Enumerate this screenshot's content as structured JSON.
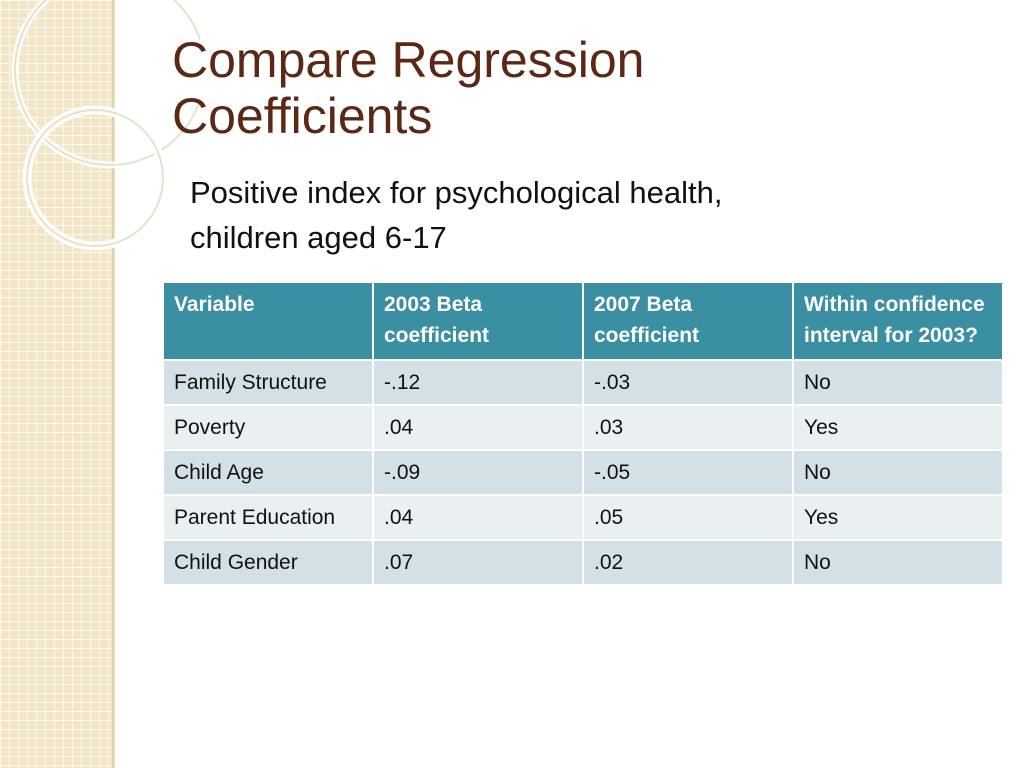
{
  "slide": {
    "title_line1": "Compare Regression",
    "title_line2": "Coefficients",
    "subtitle_line1": "Positive index for psychological health,",
    "subtitle_line2": "children aged 6-17"
  },
  "colors": {
    "title": "#5a2814",
    "header_bg": "#3a8fa3",
    "row_bg": "#d3e1e6",
    "row_alt_bg": "#eaf0f2",
    "side_strip": "#f3e6c6"
  },
  "table": {
    "headers": [
      "Variable",
      "2003 Beta coefficient",
      "2007 Beta coefficient",
      "Within confidence interval for 2003?"
    ],
    "rows": [
      [
        "Family Structure",
        "-.12",
        "-.03",
        "No"
      ],
      [
        "Poverty",
        ".04",
        ".03",
        "Yes"
      ],
      [
        "Child Age",
        "-.09",
        "-.05",
        "No"
      ],
      [
        "Parent Education",
        ".04",
        ".05",
        "Yes"
      ],
      [
        "Child Gender",
        ".07",
        ".02",
        "No"
      ]
    ]
  }
}
